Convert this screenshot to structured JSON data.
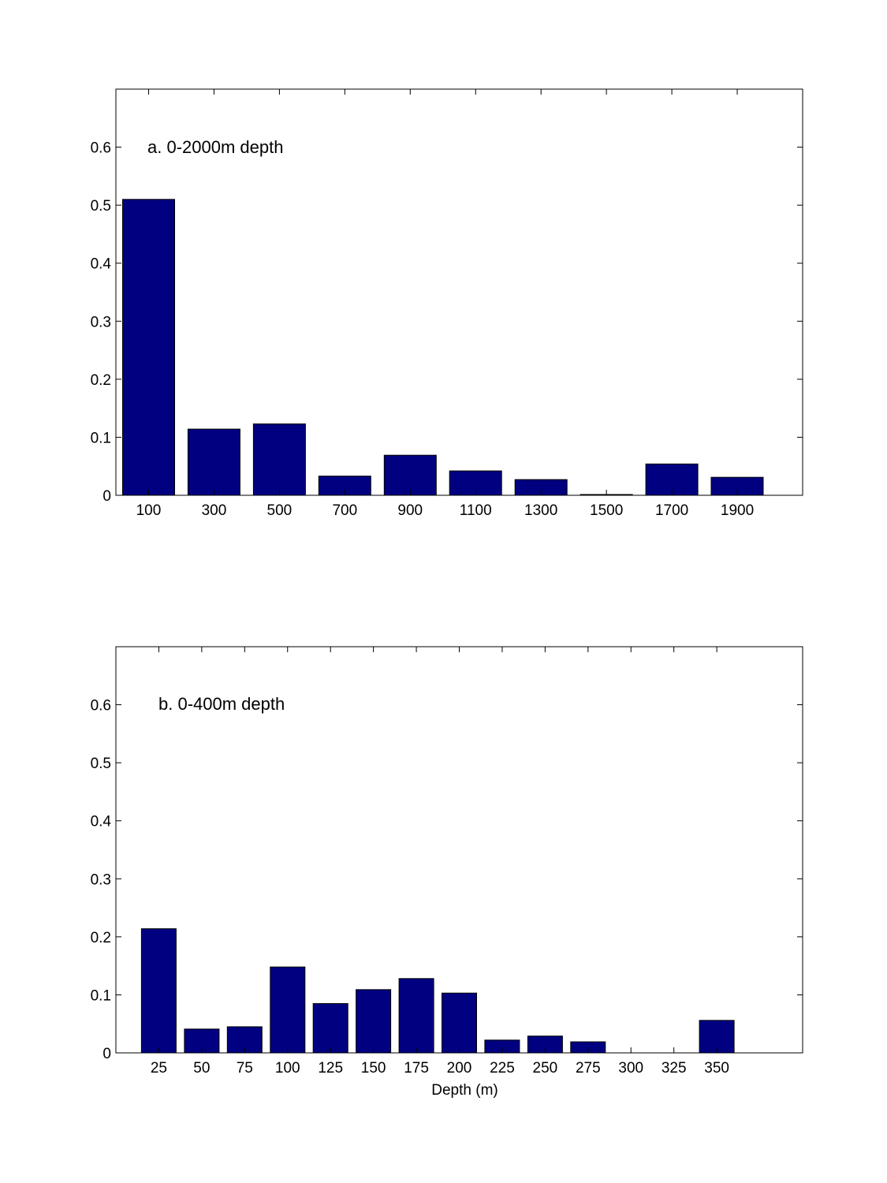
{
  "colors": {
    "bar": "#000080",
    "axis": "#000000",
    "background": "#ffffff"
  },
  "chart_data": [
    {
      "type": "bar",
      "title": "a. 0-2000m depth",
      "xlabel": "",
      "ylabel": "",
      "categories": [
        "100",
        "300",
        "500",
        "700",
        "900",
        "1100",
        "1300",
        "1500",
        "1700",
        "1900"
      ],
      "x": [
        100,
        300,
        500,
        700,
        900,
        1100,
        1300,
        1500,
        1700,
        1900
      ],
      "values": [
        0.51,
        0.114,
        0.123,
        0.033,
        0.069,
        0.042,
        0.027,
        0.001,
        0.054,
        0.031
      ],
      "xlim": [
        0,
        2100
      ],
      "ylim": [
        0,
        0.7
      ],
      "yticks": [
        0,
        0.1,
        0.2,
        0.3,
        0.4,
        0.5,
        0.6
      ],
      "ytick_labels": [
        "0",
        "0.1",
        "0.2",
        "0.3",
        "0.4",
        "0.5",
        "0.6"
      ],
      "grid": false,
      "legend": "none"
    },
    {
      "type": "bar",
      "title": "b. 0-400m depth",
      "xlabel": "Depth (m)",
      "ylabel": "",
      "categories": [
        "25",
        "50",
        "75",
        "100",
        "125",
        "150",
        "175",
        "200",
        "225",
        "250",
        "275",
        "300",
        "325",
        "350"
      ],
      "x": [
        25,
        50,
        75,
        100,
        125,
        150,
        175,
        200,
        225,
        250,
        275,
        300,
        325,
        350
      ],
      "values": [
        0.214,
        0.041,
        0.045,
        0.148,
        0.085,
        0.109,
        0.128,
        0.103,
        0.022,
        0.029,
        0.019,
        0,
        0,
        0.056
      ],
      "xlim": [
        0,
        400
      ],
      "ylim": [
        0,
        0.7
      ],
      "yticks": [
        0,
        0.1,
        0.2,
        0.3,
        0.4,
        0.5,
        0.6
      ],
      "ytick_labels": [
        "0",
        "0.1",
        "0.2",
        "0.3",
        "0.4",
        "0.5",
        "0.6"
      ],
      "grid": false,
      "legend": "none"
    }
  ]
}
